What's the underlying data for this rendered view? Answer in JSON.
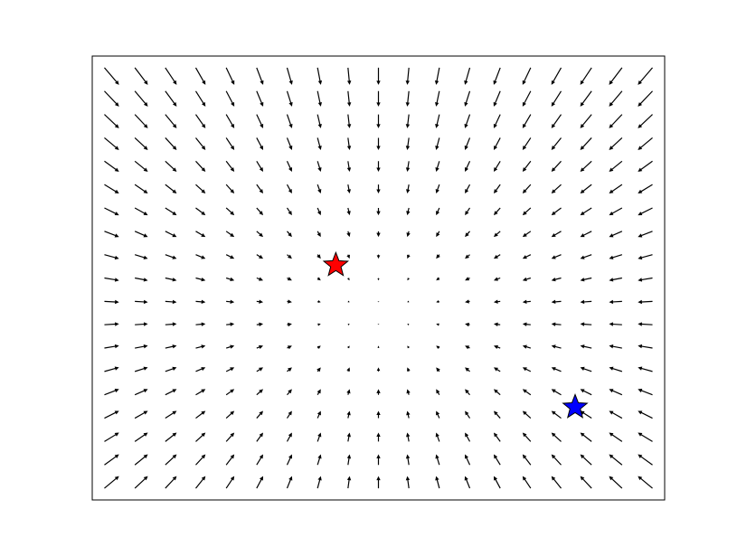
{
  "chart_data": {
    "type": "quiver",
    "xlim": [
      -9.4,
      9.4
    ],
    "ylim": [
      -9.5,
      9.5
    ],
    "x": [
      -9,
      -8,
      -7,
      -6,
      -5,
      -4,
      -3,
      -2,
      -1,
      0,
      1,
      2,
      3,
      4,
      5,
      6,
      7,
      8,
      9
    ],
    "y": [
      9,
      8,
      7,
      6,
      5,
      4,
      3,
      2,
      1,
      0,
      -1,
      -2,
      -3,
      -4,
      -5,
      -6,
      -7,
      -8,
      -9
    ],
    "u": [
      [
        9,
        8,
        7,
        6,
        5,
        4,
        3,
        2,
        1,
        0,
        -1,
        -2,
        -3,
        -4,
        -5,
        -6,
        -7,
        -8,
        -9
      ],
      [
        9,
        8,
        7,
        6,
        5,
        4,
        3,
        2,
        1,
        0,
        -1,
        -2,
        -3,
        -4,
        -5,
        -6,
        -7,
        -8,
        -9
      ],
      [
        9,
        8,
        7,
        6,
        5,
        4,
        3,
        2,
        1,
        0,
        -1,
        -2,
        -3,
        -4,
        -5,
        -6,
        -7,
        -8,
        -9
      ],
      [
        9,
        8,
        7,
        6,
        5,
        4,
        3,
        2,
        1,
        0,
        -1,
        -2,
        -3,
        -4,
        -5,
        -6,
        -7,
        -8,
        -9
      ],
      [
        9,
        8,
        7,
        6,
        5,
        4,
        3,
        2,
        1,
        0,
        -1,
        -2,
        -3,
        -4,
        -5,
        -6,
        -7,
        -8,
        -9
      ],
      [
        9,
        8,
        7,
        6,
        5,
        4,
        3,
        2,
        1,
        0,
        -1,
        -2,
        -3,
        -4,
        -5,
        -6,
        -7,
        -8,
        -9
      ],
      [
        9,
        8,
        7,
        6,
        5,
        4,
        3,
        2,
        1,
        0,
        -1,
        -2,
        -3,
        -4,
        -5,
        -6,
        -7,
        -8,
        -9
      ],
      [
        9,
        8,
        7,
        6,
        5,
        4,
        3,
        2,
        1,
        0,
        -1,
        -2,
        -3,
        -4,
        -5,
        -6,
        -7,
        -8,
        -9
      ],
      [
        9,
        8,
        7,
        6,
        5,
        4,
        3,
        2,
        1,
        0,
        -1,
        -2,
        -3,
        -4,
        -5,
        -6,
        -7,
        -8,
        -9
      ],
      [
        9,
        8,
        7,
        6,
        5,
        4,
        3,
        2,
        1,
        0,
        -1,
        -2,
        -3,
        -4,
        -5,
        -6,
        -7,
        -8,
        -9
      ],
      [
        9,
        8,
        7,
        6,
        5,
        4,
        3,
        2,
        1,
        0,
        -1,
        -2,
        -3,
        -4,
        -5,
        -6,
        -7,
        -8,
        -9
      ],
      [
        9,
        8,
        7,
        6,
        5,
        4,
        3,
        2,
        1,
        0,
        -1,
        -2,
        -3,
        -4,
        -5,
        -6,
        -7,
        -8,
        -9
      ],
      [
        9,
        8,
        7,
        6,
        5,
        4,
        3,
        2,
        1,
        0,
        -1,
        -2,
        -3,
        -4,
        -5,
        -6,
        -7,
        -8,
        -9
      ],
      [
        9,
        8,
        7,
        6,
        5,
        4,
        3,
        2,
        1,
        0,
        -1,
        -2,
        -3,
        -4,
        -5,
        -6,
        -7,
        -8,
        -9
      ],
      [
        9,
        8,
        7,
        6,
        5,
        4,
        3,
        2,
        1,
        0,
        -1,
        -2,
        -3,
        -4,
        -5,
        -6,
        -7,
        -8,
        -9
      ],
      [
        9,
        8,
        7,
        6,
        5,
        4,
        3,
        2,
        1,
        0,
        -1,
        -2,
        -3,
        -4,
        -5,
        -6,
        -7,
        -8,
        -9
      ],
      [
        9,
        8,
        7,
        6,
        5,
        4,
        3,
        2,
        1,
        0,
        -1,
        -2,
        -3,
        -4,
        -5,
        -6,
        -7,
        -8,
        -9
      ],
      [
        9,
        8,
        7,
        6,
        5,
        4,
        3,
        2,
        1,
        0,
        -1,
        -2,
        -3,
        -4,
        -5,
        -6,
        -7,
        -8,
        -9
      ],
      [
        9,
        8,
        7,
        6,
        5,
        4,
        3,
        2,
        1,
        0,
        -1,
        -2,
        -3,
        -4,
        -5,
        -6,
        -7,
        -8,
        -9
      ]
    ],
    "v": [
      [
        -10.5,
        -10.5,
        -10.5,
        -10.5,
        -10.5,
        -10.5,
        -10.5,
        -10.5,
        -10.5,
        -10.5,
        -10.5,
        -10.5,
        -10.5,
        -10.5,
        -10.5,
        -10.5,
        -10.5,
        -10.5,
        -10.5
      ],
      [
        -9.5,
        -9.5,
        -9.5,
        -9.5,
        -9.5,
        -9.5,
        -9.5,
        -9.5,
        -9.5,
        -9.5,
        -9.5,
        -9.5,
        -9.5,
        -9.5,
        -9.5,
        -9.5,
        -9.5,
        -9.5,
        -9.5
      ],
      [
        -8.5,
        -8.5,
        -8.5,
        -8.5,
        -8.5,
        -8.5,
        -8.5,
        -8.5,
        -8.5,
        -8.5,
        -8.5,
        -8.5,
        -8.5,
        -8.5,
        -8.5,
        -8.5,
        -8.5,
        -8.5,
        -8.5
      ],
      [
        -7.5,
        -7.5,
        -7.5,
        -7.5,
        -7.5,
        -7.5,
        -7.5,
        -7.5,
        -7.5,
        -7.5,
        -7.5,
        -7.5,
        -7.5,
        -7.5,
        -7.5,
        -7.5,
        -7.5,
        -7.5,
        -7.5
      ],
      [
        -6.5,
        -6.5,
        -6.5,
        -6.5,
        -6.5,
        -6.5,
        -6.5,
        -6.5,
        -6.5,
        -6.5,
        -6.5,
        -6.5,
        -6.5,
        -6.5,
        -6.5,
        -6.5,
        -6.5,
        -6.5,
        -6.5
      ],
      [
        -5.5,
        -5.5,
        -5.5,
        -5.5,
        -5.5,
        -5.5,
        -5.5,
        -5.5,
        -5.5,
        -5.5,
        -5.5,
        -5.5,
        -5.5,
        -5.5,
        -5.5,
        -5.5,
        -5.5,
        -5.5,
        -5.5
      ],
      [
        -4.5,
        -4.5,
        -4.5,
        -4.5,
        -4.5,
        -4.5,
        -4.5,
        -4.5,
        -4.5,
        -4.5,
        -4.5,
        -4.5,
        -4.5,
        -4.5,
        -4.5,
        -4.5,
        -4.5,
        -4.5,
        -4.5
      ],
      [
        -3.5,
        -3.5,
        -3.5,
        -3.5,
        -3.5,
        -3.5,
        -3.5,
        -3.5,
        -3.5,
        -3.5,
        -3.5,
        -3.5,
        -3.5,
        -3.5,
        -3.5,
        -3.5,
        -3.5,
        -3.5,
        -3.5
      ],
      [
        -2.5,
        -2.5,
        -2.5,
        -2.5,
        -2.5,
        -2.5,
        -2.5,
        -2.5,
        -2.5,
        -2.5,
        -2.5,
        -2.5,
        -2.5,
        -2.5,
        -2.5,
        -2.5,
        -2.5,
        -2.5,
        -2.5
      ],
      [
        -1.5,
        -1.5,
        -1.5,
        -1.5,
        -1.5,
        -1.5,
        -1.5,
        -1.5,
        -1.5,
        -1.5,
        -1.5,
        -1.5,
        -1.5,
        -1.5,
        -1.5,
        -1.5,
        -1.5,
        -1.5,
        -1.5
      ],
      [
        -0.5,
        -0.5,
        -0.5,
        -0.5,
        -0.5,
        -0.5,
        -0.5,
        -0.5,
        -0.5,
        -0.5,
        -0.5,
        -0.5,
        -0.5,
        -0.5,
        -0.5,
        -0.5,
        -0.5,
        -0.5,
        -0.5
      ],
      [
        0.5,
        0.5,
        0.5,
        0.5,
        0.5,
        0.5,
        0.5,
        0.5,
        0.5,
        0.5,
        0.5,
        0.5,
        0.5,
        0.5,
        0.5,
        0.5,
        0.5,
        0.5,
        0.5
      ],
      [
        1.5,
        1.5,
        1.5,
        1.5,
        1.5,
        1.5,
        1.5,
        1.5,
        1.5,
        1.5,
        1.5,
        1.5,
        1.5,
        1.5,
        1.5,
        1.5,
        1.5,
        1.5,
        1.5
      ],
      [
        2.5,
        2.5,
        2.5,
        2.5,
        2.5,
        2.5,
        2.5,
        2.5,
        2.5,
        2.5,
        2.5,
        2.5,
        2.5,
        2.5,
        2.5,
        2.5,
        2.5,
        2.5,
        2.5
      ],
      [
        3.5,
        3.5,
        3.5,
        3.5,
        3.5,
        3.5,
        3.5,
        3.5,
        3.5,
        3.5,
        3.5,
        3.5,
        3.5,
        3.5,
        3.5,
        3.5,
        3.5,
        3.5,
        3.5
      ],
      [
        4.5,
        4.5,
        4.5,
        4.5,
        4.5,
        4.5,
        4.5,
        4.5,
        4.5,
        4.5,
        4.5,
        4.5,
        4.5,
        4.5,
        4.5,
        4.5,
        4.5,
        4.5,
        4.5
      ],
      [
        5.5,
        5.5,
        5.5,
        5.5,
        5.5,
        5.5,
        5.5,
        5.5,
        5.5,
        5.5,
        5.5,
        5.5,
        5.5,
        5.5,
        5.5,
        5.5,
        5.5,
        5.5,
        5.5
      ],
      [
        6.5,
        6.5,
        6.5,
        6.5,
        6.5,
        6.5,
        6.5,
        6.5,
        6.5,
        6.5,
        6.5,
        6.5,
        6.5,
        6.5,
        6.5,
        6.5,
        6.5,
        6.5,
        6.5
      ],
      [
        7.5,
        7.5,
        7.5,
        7.5,
        7.5,
        7.5,
        7.5,
        7.5,
        7.5,
        7.5,
        7.5,
        7.5,
        7.5,
        7.5,
        7.5,
        7.5,
        7.5,
        7.5,
        7.5
      ]
    ],
    "color": "#000000",
    "markers": [
      {
        "x": -1.4,
        "y": 0.55,
        "color": "#ff0000"
      },
      {
        "x": 6.46,
        "y": -5.53,
        "color": "#0000ff"
      }
    ]
  }
}
